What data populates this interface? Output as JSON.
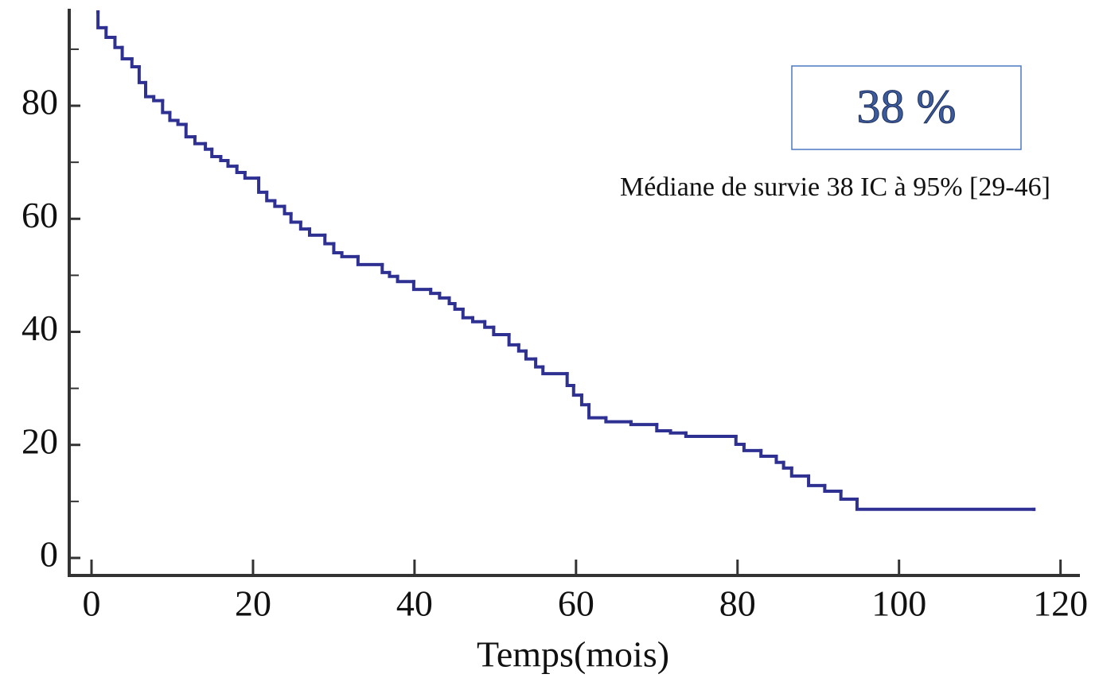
{
  "chart_data": {
    "type": "step",
    "x_label": "Temps(mois)",
    "annotations": [
      "38 %",
      "Médiane de survie 38 IC à 95% [29-46]"
    ],
    "series": [
      {
        "color": "#2e3192",
        "x": [
          0.8,
          0.8,
          1.8,
          2.9,
          3.8,
          5.0,
          5.9,
          6.7,
          7.7,
          8.8,
          9.7,
          10.7,
          11.7,
          12.8,
          14.1,
          14.9,
          16.0,
          16.9,
          18.0,
          19.0,
          20.7,
          21.7,
          22.7,
          23.9,
          24.7,
          25.9,
          27.0,
          28.9,
          30.0,
          31.0,
          33.0,
          36.0,
          36.9,
          37.9,
          39.9,
          42.0,
          43.1,
          44.3,
          45.0,
          46.0,
          47.2,
          48.7,
          49.8,
          51.7,
          52.9,
          53.8,
          55.0,
          55.9,
          58.9,
          59.7,
          60.7,
          61.6,
          63.7,
          66.8,
          70.0,
          71.7,
          73.6,
          79.8,
          80.8,
          82.9,
          84.8,
          85.7,
          86.7,
          88.8,
          90.8,
          92.8,
          94.8,
          116.7
        ],
        "values": [
          96.6,
          93.8,
          92.1,
          90.3,
          88.3,
          86.9,
          84.1,
          81.6,
          80.9,
          78.8,
          77.4,
          76.7,
          74.5,
          73.3,
          72.3,
          71.0,
          70.3,
          69.3,
          68.2,
          67.2,
          64.7,
          63.2,
          62.2,
          60.9,
          59.4,
          58.2,
          57.1,
          55.6,
          54.0,
          53.3,
          51.9,
          50.5,
          49.8,
          48.9,
          47.5,
          46.8,
          46.0,
          45.0,
          44.0,
          42.5,
          41.8,
          40.8,
          39.5,
          37.7,
          36.6,
          35.2,
          33.8,
          32.6,
          30.5,
          28.8,
          27.1,
          24.8,
          24.1,
          23.6,
          22.5,
          22.1,
          21.5,
          20.1,
          19.0,
          18.0,
          16.9,
          15.9,
          14.5,
          12.8,
          11.8,
          10.4,
          8.6,
          8.6
        ]
      }
    ],
    "xlim": [
      -2.76,
      122.4
    ],
    "xticks": [
      0,
      20,
      40,
      60,
      80,
      100,
      120
    ],
    "ylim": [
      -3.1,
      96.6
    ],
    "yticks": [
      0,
      20,
      40,
      60,
      80
    ],
    "yminorticks": [
      10,
      30,
      50,
      70,
      90
    ]
  }
}
